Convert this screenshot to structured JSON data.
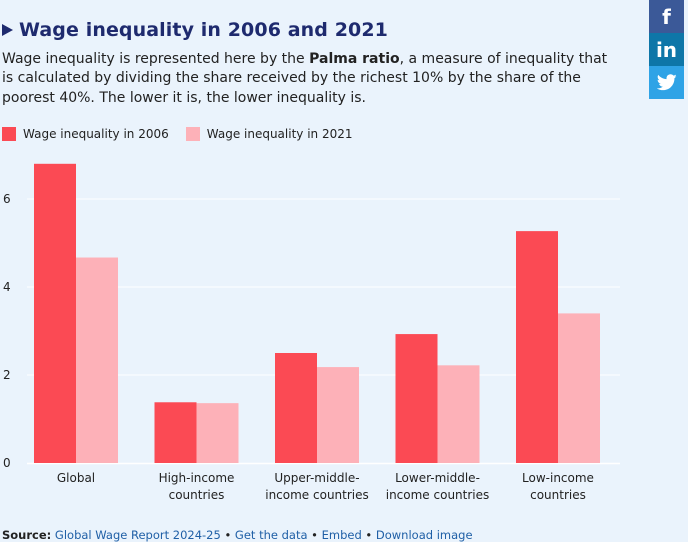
{
  "header": {
    "title": "Wage inequality in 2006 and 2021",
    "desc_pre": "Wage inequality is represented here by the ",
    "desc_bold": "Palma ratio",
    "desc_post": ", a measure of inequality that is calculated by dividing the share received by the richest 10% by the share of the poorest 40%. The lower it is, the lower inequality is."
  },
  "legend": {
    "s2006": "Wage inequality in 2006",
    "s2021": "Wage inequality in 2021"
  },
  "colors": {
    "s2006": "#fb4a54",
    "s2021": "#fdb1b8",
    "title": "#1e2a6e",
    "background": "#eaf3fc",
    "facebook": "#3b5998",
    "linkedin": "#0e76a8",
    "twitter": "#2fa3e6"
  },
  "chart_data": {
    "type": "bar",
    "title": "Wage inequality in 2006 and 2021",
    "xlabel": "",
    "ylabel": "",
    "ylim": [
      0,
      7
    ],
    "yticks": [
      "0",
      "2",
      "4",
      "6"
    ],
    "grid": true,
    "legend_position": "top-left",
    "categories": [
      [
        "Global"
      ],
      [
        "High-income",
        "countries"
      ],
      [
        "Upper-middle-",
        "income countries"
      ],
      [
        "Lower-middle-",
        "income countries"
      ],
      [
        "Low-income",
        "countries"
      ]
    ],
    "series": [
      {
        "name": "Wage inequality in 2006",
        "values": [
          6.8,
          1.38,
          2.5,
          2.93,
          5.27
        ]
      },
      {
        "name": "Wage inequality in 2021",
        "values": [
          4.67,
          1.36,
          2.18,
          2.22,
          3.4
        ]
      }
    ]
  },
  "footer": {
    "source_label": "Source:",
    "source_text": " Global Wage Report 2024-25",
    "sep": " • ",
    "get_data": "Get the data",
    "embed": "Embed",
    "download": "Download image"
  },
  "social": {
    "facebook": "f",
    "linkedin": "in",
    "twitter": "twitter-icon"
  }
}
